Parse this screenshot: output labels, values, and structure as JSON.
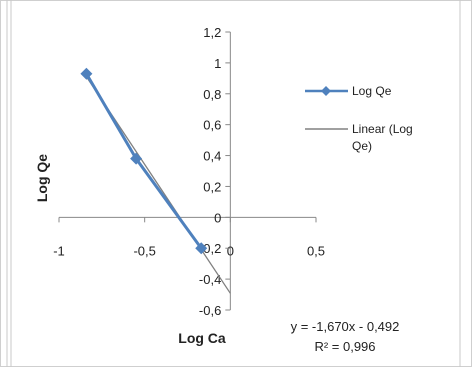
{
  "chart_data": {
    "type": "scatter",
    "xlabel": "Log Ca",
    "ylabel": "Log Qe",
    "xlim": [
      -1,
      0.5
    ],
    "ylim": [
      -0.6,
      1.2
    ],
    "xticks": [
      -1,
      -0.5,
      0,
      0.5
    ],
    "xtick_labels": [
      "-1",
      "-0,5",
      "0",
      "0,5"
    ],
    "yticks": [
      1.2,
      1.0,
      0.8,
      0.6,
      0.4,
      0.2,
      0.0,
      -0.2,
      -0.4,
      -0.6
    ],
    "ytick_labels": [
      "1,2",
      "1",
      "0,8",
      "0,6",
      "0,4",
      "0,2",
      "0",
      "-0,2",
      "-0,4",
      "-0,6"
    ],
    "grid": false,
    "legend_position": "right",
    "series": [
      {
        "name": "Log Qe",
        "x": [
          -0.84,
          -0.55,
          -0.17
        ],
        "y": [
          0.93,
          0.38,
          -0.2
        ],
        "color": "#4F81BD",
        "marker": "diamond"
      },
      {
        "name": "Linear (Log Qe)",
        "type": "trendline",
        "slope": -1.67,
        "intercept": -0.492,
        "x_range": [
          -0.85,
          0.0
        ],
        "color": "#808080"
      }
    ],
    "annotations": {
      "equation": "y = -1,670x - 0,492",
      "r_squared": "R² = 0,996"
    }
  }
}
